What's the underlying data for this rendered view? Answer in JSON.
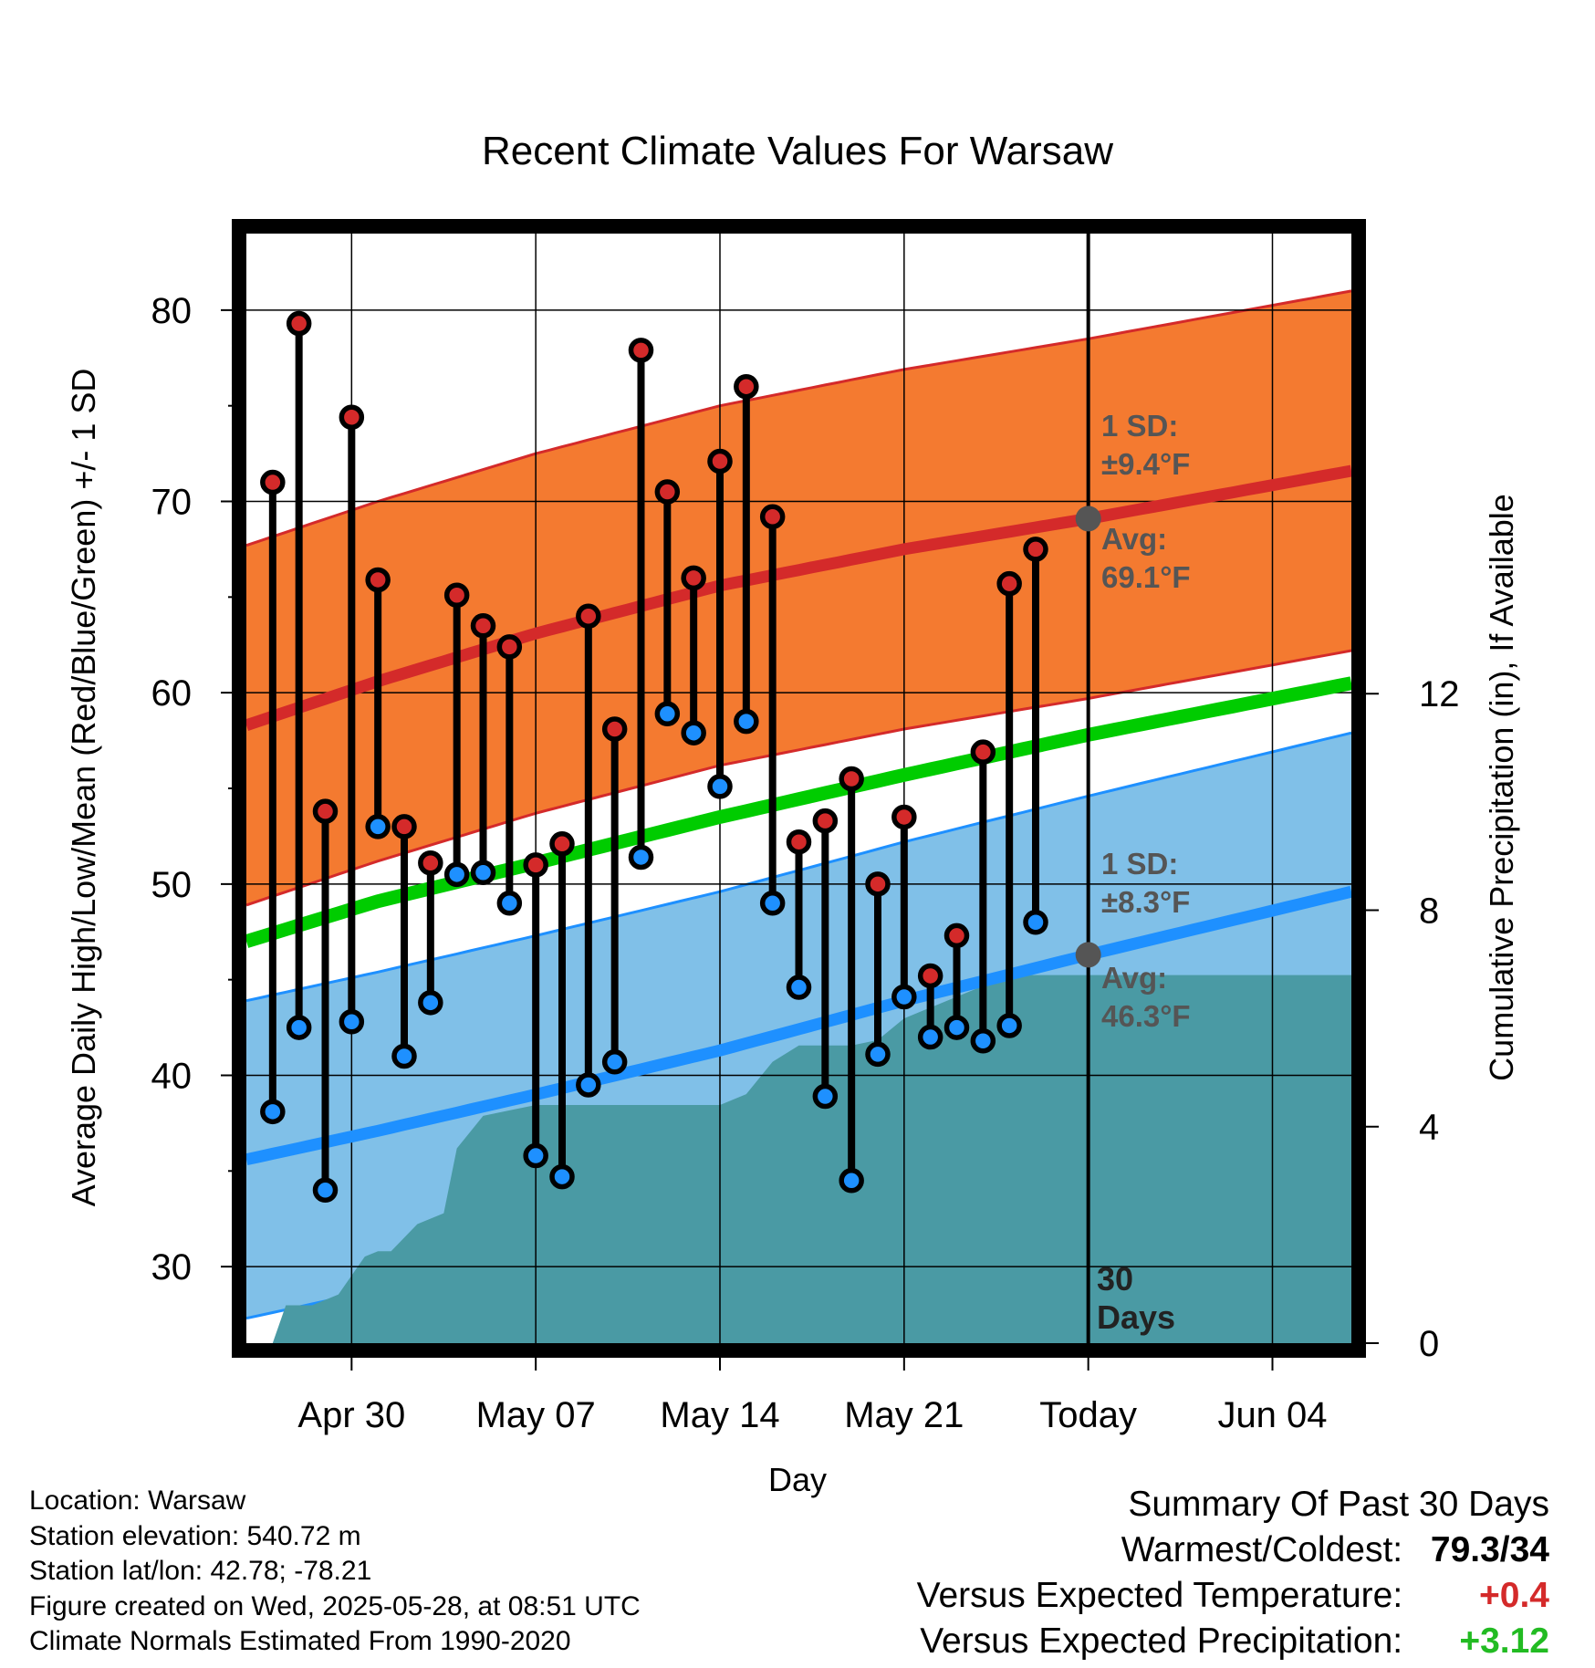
{
  "chart_data": {
    "type": "line",
    "title": "Recent Climate Values For Warsaw",
    "xlabel": "Day",
    "ylabel": "Average Daily High/Low/Mean (Red/Blue/Green) +/- 1 SD",
    "y2label": "Cumulative Precipitation (in), If Available",
    "x_start": "2025-04-26",
    "x_end": "2025-06-07",
    "ylim": [
      26,
      84
    ],
    "yticks": [
      "30",
      "40",
      "50",
      "60",
      "70",
      "80"
    ],
    "y2lim": [
      0,
      20.5
    ],
    "y2ticks": [
      "0",
      "4",
      "8",
      "12"
    ],
    "xticks": [
      {
        "date": "2025-04-30",
        "label": "Apr 30"
      },
      {
        "date": "2025-05-07",
        "label": "May 07"
      },
      {
        "date": "2025-05-14",
        "label": "May 14"
      },
      {
        "date": "2025-05-21",
        "label": "May 21"
      },
      {
        "date": "2025-05-28",
        "label": "Today"
      },
      {
        "date": "2025-06-04",
        "label": "Jun 04"
      }
    ],
    "grid": true,
    "colors": {
      "high_band": "#f47a30",
      "high_line": "#d42a2a",
      "low_band": "#80c0e8",
      "low_line": "#1e90ff",
      "mean_line": "#00cc00",
      "precip": "#4a9aa4",
      "high_marker": "#d42a2a",
      "low_marker": "#1e90ff",
      "marker_outline": "#000000",
      "today_marker": "#555555"
    },
    "normal_high": {
      "dates": [
        "2025-04-26",
        "2025-05-01",
        "2025-05-07",
        "2025-05-14",
        "2025-05-21",
        "2025-05-28",
        "2025-06-07"
      ],
      "values": [
        58.3,
        60.6,
        63.1,
        65.6,
        67.5,
        69.1,
        71.6
      ]
    },
    "normal_low": {
      "dates": [
        "2025-04-26",
        "2025-05-01",
        "2025-05-07",
        "2025-05-14",
        "2025-05-21",
        "2025-05-28",
        "2025-06-07"
      ],
      "values": [
        35.6,
        37.1,
        39.0,
        41.3,
        43.9,
        46.3,
        49.6
      ]
    },
    "normal_mean": {
      "dates": [
        "2025-04-26",
        "2025-05-01",
        "2025-05-07",
        "2025-05-14",
        "2025-05-21",
        "2025-05-28",
        "2025-06-07"
      ],
      "values": [
        47.0,
        49.1,
        51.1,
        53.5,
        55.7,
        57.8,
        60.5
      ]
    },
    "high_sd": 9.4,
    "low_sd": 8.3,
    "daily": {
      "dates": [
        "2025-04-27",
        "2025-04-28",
        "2025-04-29",
        "2025-04-30",
        "2025-05-01",
        "2025-05-02",
        "2025-05-03",
        "2025-05-04",
        "2025-05-05",
        "2025-05-06",
        "2025-05-07",
        "2025-05-08",
        "2025-05-09",
        "2025-05-10",
        "2025-05-11",
        "2025-05-12",
        "2025-05-13",
        "2025-05-14",
        "2025-05-15",
        "2025-05-16",
        "2025-05-17",
        "2025-05-18",
        "2025-05-19",
        "2025-05-20",
        "2025-05-21",
        "2025-05-22",
        "2025-05-23",
        "2025-05-24",
        "2025-05-25",
        "2025-05-26",
        "2025-05-27"
      ],
      "highs": [
        71.0,
        79.3,
        53.8,
        74.4,
        65.9,
        53.0,
        51.1,
        65.1,
        63.5,
        62.4,
        51.0,
        52.1,
        64.0,
        58.1,
        77.9,
        70.5,
        66.0,
        72.1,
        76.0,
        69.2,
        52.2,
        53.3,
        55.5,
        50.0,
        53.5,
        45.2,
        47.3,
        56.9,
        65.7,
        67.5,
        null
      ],
      "lows": [
        38.1,
        42.5,
        34.0,
        42.8,
        53.0,
        41.0,
        43.8,
        50.5,
        50.6,
        49.0,
        35.8,
        34.7,
        39.5,
        40.7,
        51.4,
        58.9,
        57.9,
        55.1,
        58.5,
        49.0,
        44.6,
        38.9,
        34.5,
        41.1,
        44.1,
        42.0,
        42.5,
        41.8,
        42.6,
        48.0,
        null
      ]
    },
    "precip_cumulative": {
      "dates": [
        "2025-04-27",
        "2025-04-27.5",
        "2025-04-28.5",
        "2025-04-29.5",
        "2025-04-30.5",
        "2025-05-01",
        "2025-05-01.5",
        "2025-05-02.5",
        "2025-05-03.5",
        "2025-05-04",
        "2025-05-05",
        "2025-05-06",
        "2025-05-07",
        "2025-05-14",
        "2025-05-15",
        "2025-05-16",
        "2025-05-17",
        "2025-05-18",
        "2025-05-19",
        "2025-05-20",
        "2025-05-21",
        "2025-05-22",
        "2025-05-23",
        "2025-05-24",
        "2025-05-25",
        "2025-06-07"
      ],
      "values": [
        0,
        0.7,
        0.7,
        0.9,
        1.6,
        1.7,
        1.7,
        2.2,
        2.4,
        3.6,
        4.2,
        4.3,
        4.4,
        4.4,
        4.6,
        5.2,
        5.5,
        5.5,
        5.5,
        5.6,
        6.0,
        6.2,
        6.4,
        6.6,
        6.8,
        6.8
      ]
    },
    "annotations": {
      "high_sd_label": "1 SD:",
      "high_sd_value": "±9.4°F",
      "high_avg_label": "Avg:",
      "high_avg_value": "69.1°F",
      "low_sd_label": "1 SD:",
      "low_sd_value": "±8.3°F",
      "low_avg_label": "Avg:",
      "low_avg_value": "46.3°F",
      "days_label_1": "30",
      "days_label_2": "Days"
    },
    "today_marker": {
      "date": "2025-05-28",
      "high": 69.1,
      "low": 46.3
    }
  },
  "info": {
    "location": "Location: Warsaw",
    "elevation": "Station elevation: 540.72 m",
    "latlon": "Station lat/lon: 42.78; -78.21",
    "created": "Figure created on Wed, 2025-05-28, at 08:51 UTC",
    "normals": "Climate Normals Estimated From 1990-2020"
  },
  "summary": {
    "title": "Summary Of Past 30 Days",
    "warm_cold_label": "Warmest/Coldest:",
    "warm_cold_value": "79.3/34",
    "temp_label": "Versus Expected Temperature:",
    "temp_value": "+0.4",
    "temp_color": "#d42a2a",
    "precip_label": "Versus Expected Precipitation:",
    "precip_value": "+3.12",
    "precip_color": "#22bb22"
  }
}
